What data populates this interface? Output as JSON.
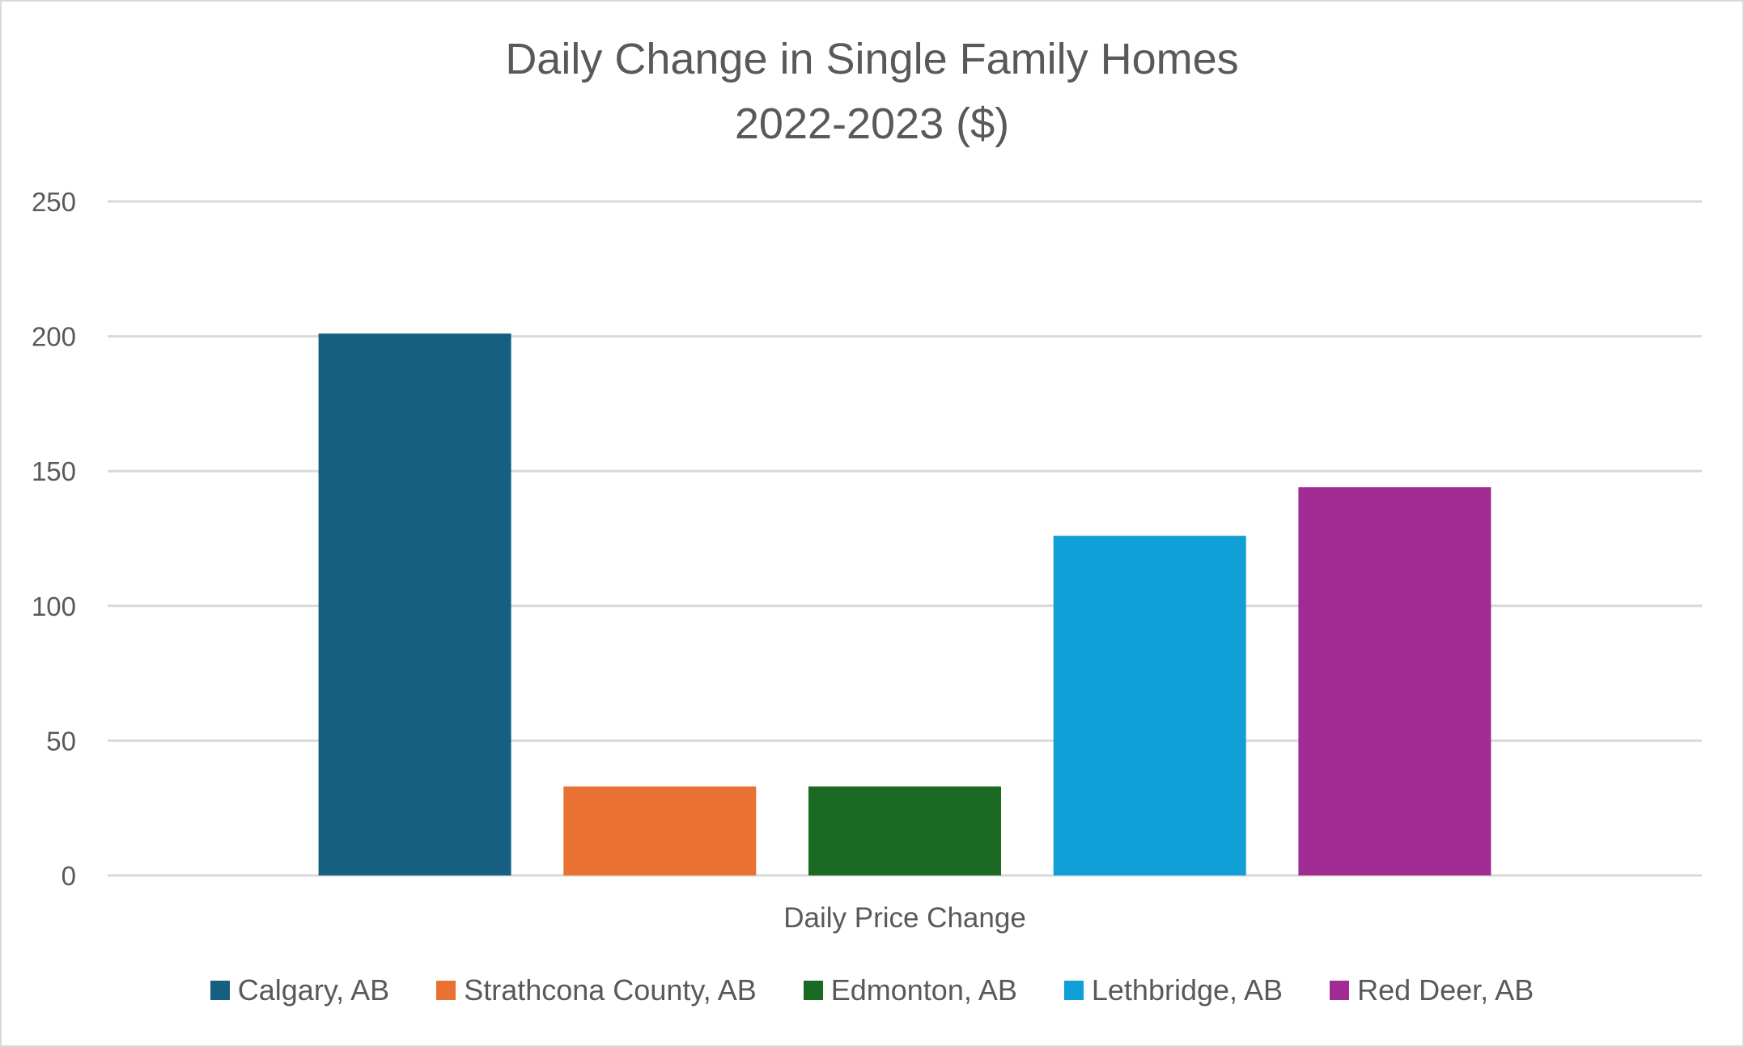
{
  "chart_data": {
    "type": "bar",
    "title": "Daily Change in Single Family Homes",
    "subtitle": "2022-2023 ($)",
    "xlabel": "Daily Price Change",
    "ylabel": "",
    "categories": [
      "Daily Price Change"
    ],
    "ylim": [
      0,
      250
    ],
    "yticks": [
      "0",
      "50",
      "100",
      "150",
      "200",
      "250"
    ],
    "grid": true,
    "legend_position": "bottom",
    "series": [
      {
        "name": "Calgary, AB",
        "values": [
          201
        ],
        "color": "#175F81"
      },
      {
        "name": "Strathcona County, AB",
        "values": [
          33
        ],
        "color": "#E97132"
      },
      {
        "name": "Edmonton, AB",
        "values": [
          33
        ],
        "color": "#1B6A24"
      },
      {
        "name": "Lethbridge, AB",
        "values": [
          126
        ],
        "color": "#109FD6"
      },
      {
        "name": "Red Deer, AB",
        "values": [
          144
        ],
        "color": "#A02B93"
      }
    ]
  }
}
